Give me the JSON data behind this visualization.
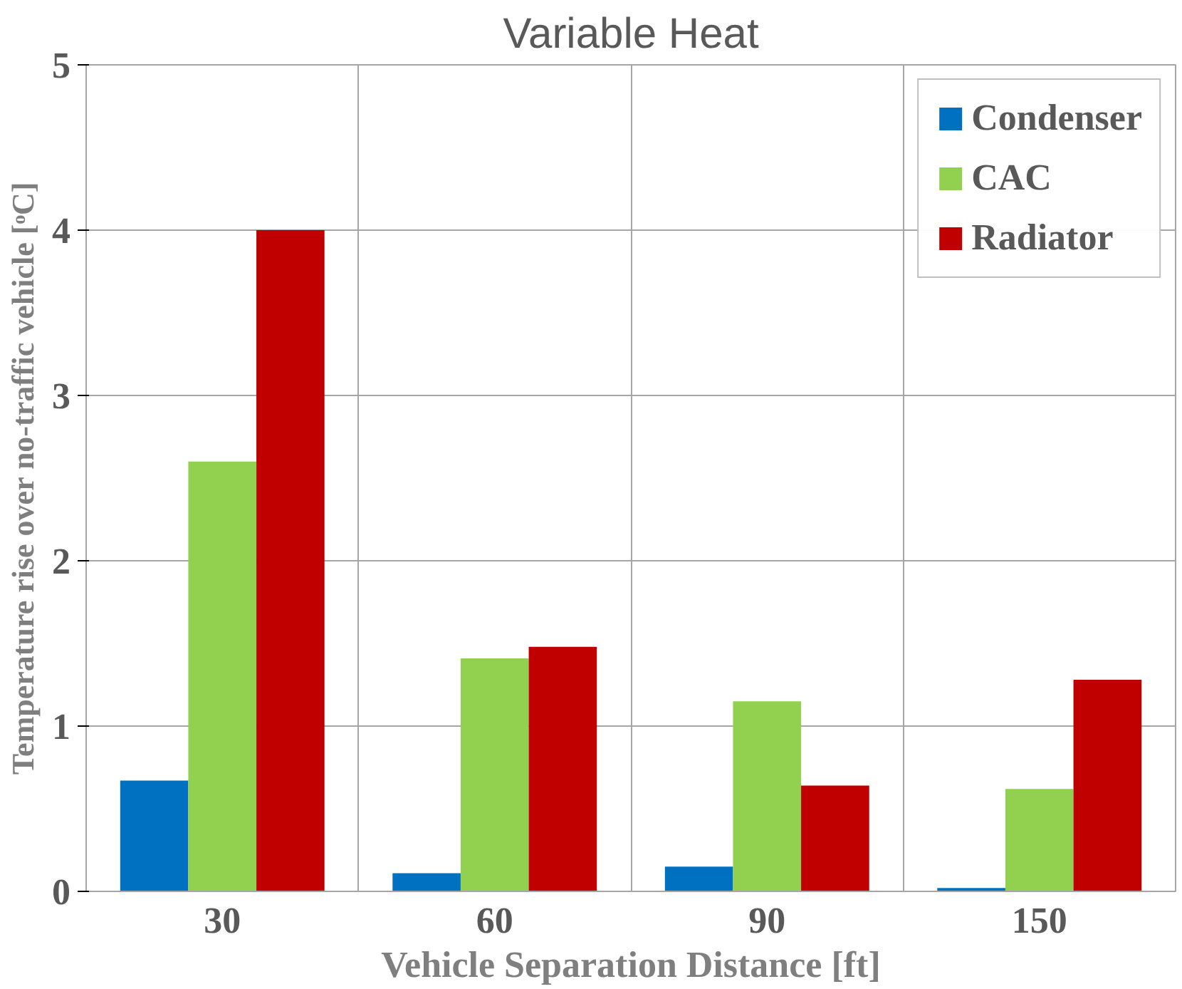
{
  "chart_data": {
    "type": "bar",
    "title": "Variable Heat",
    "xlabel": "Vehicle Separation Distance [ft]",
    "ylabel": "Temperature rise over no-traffic vehicle [ᵒC]",
    "categories": [
      "30",
      "60",
      "90",
      "150"
    ],
    "series": [
      {
        "name": "Condenser",
        "color": "#0070c0",
        "values": [
          0.67,
          0.11,
          0.15,
          0.02
        ]
      },
      {
        "name": "CAC",
        "color": "#92d050",
        "values": [
          2.6,
          1.41,
          1.15,
          0.62
        ]
      },
      {
        "name": "Radiator",
        "color": "#c00000",
        "values": [
          4.0,
          1.48,
          0.64,
          1.28
        ]
      }
    ],
    "ylim": [
      0,
      5
    ],
    "yticks": [
      0,
      1,
      2,
      3,
      4,
      5
    ],
    "grid": true,
    "legend": "top right"
  }
}
